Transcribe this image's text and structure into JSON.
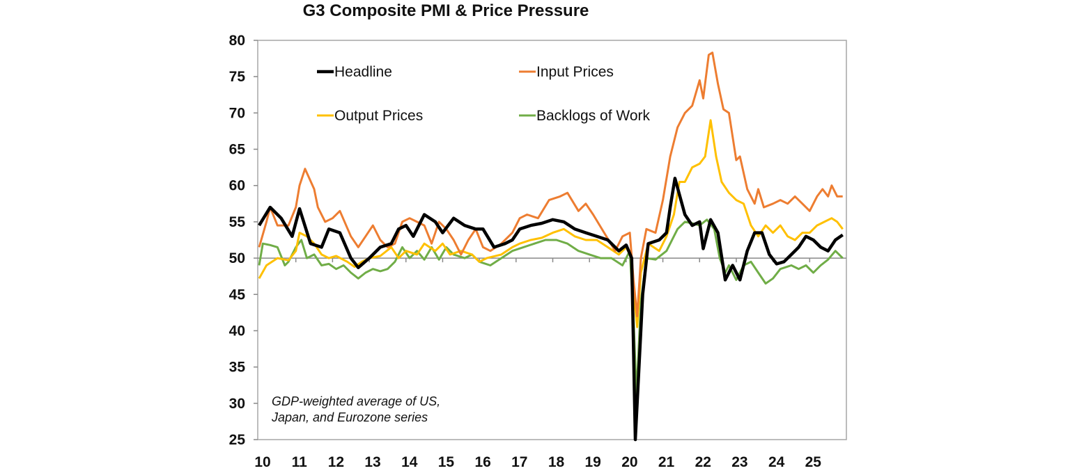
{
  "chart_data": {
    "type": "line",
    "title": "G3 Composite PMI & Price Pressure",
    "xlabel": "",
    "ylabel": "",
    "ylim": [
      25,
      80
    ],
    "xlim": [
      2010,
      2026
    ],
    "yticks": [
      "25",
      "30",
      "35",
      "40",
      "45",
      "50",
      "55",
      "60",
      "65",
      "70",
      "75",
      "80"
    ],
    "xticks": [
      "10",
      "11",
      "12",
      "13",
      "14",
      "15",
      "16",
      "17",
      "18",
      "19",
      "20",
      "21",
      "22",
      "23",
      "24",
      "25"
    ],
    "reference_line": 50,
    "grid": false,
    "legend_placement": "top-left inside",
    "annotation": [
      "GDP-weighted average of US,",
      "Japan, and Eurozone series"
    ],
    "series": [
      {
        "name": "Headline",
        "color": "#000000",
        "x": [
          2010.0,
          2010.3,
          2010.6,
          2010.9,
          2011.1,
          2011.4,
          2011.7,
          2011.9,
          2012.2,
          2012.5,
          2012.7,
          2013.0,
          2013.3,
          2013.6,
          2013.8,
          2014.0,
          2014.2,
          2014.5,
          2014.8,
          2015.0,
          2015.3,
          2015.6,
          2015.9,
          2016.1,
          2016.4,
          2016.7,
          2016.9,
          2017.1,
          2017.4,
          2017.7,
          2018.0,
          2018.3,
          2018.6,
          2018.9,
          2019.2,
          2019.5,
          2019.8,
          2020.0,
          2020.15,
          2020.25,
          2020.45,
          2020.6,
          2020.9,
          2021.1,
          2021.2,
          2021.33,
          2021.6,
          2021.8,
          2022.0,
          2022.1,
          2022.3,
          2022.5,
          2022.7,
          2022.9,
          2023.1,
          2023.3,
          2023.5,
          2023.7,
          2023.9,
          2024.1,
          2024.3,
          2024.5,
          2024.7,
          2024.9,
          2025.1,
          2025.3,
          2025.5,
          2025.7,
          2025.9
        ],
        "y": [
          54.5,
          57,
          55.5,
          53,
          56.8,
          52,
          51.5,
          54,
          53.5,
          50,
          48.7,
          50,
          51.5,
          52,
          54,
          54.5,
          53,
          56,
          55,
          53.5,
          55.5,
          54.5,
          54,
          54,
          51.5,
          52,
          52.5,
          54,
          54.5,
          54.8,
          55.3,
          55,
          54,
          53.5,
          53,
          52.5,
          51,
          51.8,
          50,
          25,
          45,
          52,
          52.5,
          53.5,
          57,
          61,
          56,
          54.5,
          55,
          51.3,
          55.3,
          53.5,
          47,
          49,
          47,
          51,
          53.5,
          53.5,
          50.5,
          49.2,
          49.5,
          50.5,
          51.5,
          53,
          52.5,
          51.5,
          51,
          52.5,
          53.2
        ]
      },
      {
        "name": "Input Prices",
        "color": "#ED7D31",
        "x": [
          2010.0,
          2010.2,
          2010.3,
          2010.5,
          2010.8,
          2011.0,
          2011.1,
          2011.25,
          2011.5,
          2011.6,
          2011.8,
          2012.0,
          2012.2,
          2012.5,
          2012.7,
          2012.9,
          2013.1,
          2013.3,
          2013.5,
          2013.7,
          2013.9,
          2014.1,
          2014.3,
          2014.5,
          2014.7,
          2014.9,
          2015.1,
          2015.3,
          2015.5,
          2015.7,
          2015.9,
          2016.1,
          2016.3,
          2016.6,
          2016.9,
          2017.1,
          2017.3,
          2017.6,
          2017.9,
          2018.2,
          2018.4,
          2018.7,
          2018.9,
          2019.1,
          2019.4,
          2019.7,
          2019.9,
          2020.1,
          2020.2,
          2020.3,
          2020.4,
          2020.55,
          2020.8,
          2021.0,
          2021.2,
          2021.4,
          2021.6,
          2021.8,
          2022.0,
          2022.1,
          2022.25,
          2022.35,
          2022.5,
          2022.65,
          2022.8,
          2023.0,
          2023.1,
          2023.3,
          2023.5,
          2023.6,
          2023.75,
          2024.0,
          2024.2,
          2024.4,
          2024.6,
          2024.8,
          2025.0,
          2025.2,
          2025.35,
          2025.5,
          2025.6,
          2025.75,
          2025.9
        ],
        "y": [
          51.5,
          55,
          57,
          54.5,
          54.5,
          57,
          60,
          62.3,
          59.5,
          57,
          55,
          55.5,
          56.5,
          53,
          51.5,
          53,
          54.5,
          52.5,
          51.5,
          52,
          55,
          55.5,
          55,
          54.5,
          52,
          55,
          54,
          52.5,
          50.5,
          52.5,
          54,
          51.5,
          51,
          52,
          53.5,
          55.5,
          56,
          55.5,
          58,
          58.5,
          59,
          56.5,
          57.5,
          56,
          53.5,
          51,
          53,
          53.5,
          47,
          42,
          50,
          54,
          53.5,
          58,
          64,
          68,
          70,
          71,
          74.5,
          72,
          78,
          78.3,
          74,
          70.5,
          70,
          63.5,
          64,
          59.5,
          57.5,
          59.5,
          57,
          57.5,
          58,
          57.5,
          58.5,
          57.5,
          56.5,
          58.5,
          59.5,
          58.5,
          60,
          58.5,
          58.5
        ]
      },
      {
        "name": "Output Prices",
        "color": "#FFC000",
        "x": [
          2010.0,
          2010.2,
          2010.5,
          2010.8,
          2011.0,
          2011.1,
          2011.3,
          2011.5,
          2011.7,
          2011.9,
          2012.1,
          2012.4,
          2012.6,
          2012.8,
          2013.0,
          2013.3,
          2013.6,
          2013.8,
          2014.0,
          2014.3,
          2014.5,
          2014.8,
          2015.0,
          2015.2,
          2015.5,
          2015.8,
          2016.0,
          2016.2,
          2016.6,
          2016.9,
          2017.1,
          2017.4,
          2017.7,
          2018.0,
          2018.3,
          2018.6,
          2018.9,
          2019.2,
          2019.5,
          2019.8,
          2020.0,
          2020.15,
          2020.25,
          2020.3,
          2020.4,
          2020.6,
          2020.9,
          2021.1,
          2021.3,
          2021.45,
          2021.6,
          2021.8,
          2022.0,
          2022.15,
          2022.3,
          2022.45,
          2022.6,
          2022.8,
          2023.0,
          2023.2,
          2023.4,
          2023.6,
          2023.8,
          2024.0,
          2024.2,
          2024.4,
          2024.6,
          2024.8,
          2025.0,
          2025.2,
          2025.4,
          2025.6,
          2025.75,
          2025.9
        ],
        "y": [
          47.2,
          49,
          50,
          49.7,
          51,
          53.5,
          53,
          52,
          50.5,
          50,
          50.3,
          49.5,
          48.8,
          49.5,
          50,
          50.3,
          51.5,
          50,
          51,
          50.5,
          52,
          51,
          52,
          50.5,
          51,
          50.5,
          49.5,
          50,
          50.5,
          51.5,
          52,
          52.5,
          52.8,
          53.5,
          54,
          53,
          52.5,
          52.5,
          51.5,
          50.5,
          51.5,
          50,
          43,
          40.5,
          48,
          52,
          51,
          53,
          56,
          60.5,
          60.5,
          62.5,
          63,
          64,
          69,
          64,
          60.5,
          59,
          58,
          57.5,
          54.5,
          53,
          54.5,
          53.5,
          54.5,
          53,
          52.5,
          53.5,
          53.5,
          54.5,
          55,
          55.5,
          55,
          54
        ]
      },
      {
        "name": "Backlogs of Work",
        "color": "#70AD47",
        "x": [
          2010.0,
          2010.1,
          2010.3,
          2010.5,
          2010.7,
          2010.8,
          2011.0,
          2011.15,
          2011.3,
          2011.5,
          2011.7,
          2011.9,
          2012.1,
          2012.3,
          2012.5,
          2012.7,
          2012.9,
          2013.1,
          2013.3,
          2013.5,
          2013.7,
          2013.9,
          2014.1,
          2014.3,
          2014.5,
          2014.7,
          2014.9,
          2015.1,
          2015.3,
          2015.6,
          2015.8,
          2016.0,
          2016.3,
          2016.6,
          2016.9,
          2017.2,
          2017.5,
          2017.8,
          2018.1,
          2018.4,
          2018.7,
          2019.0,
          2019.3,
          2019.6,
          2019.9,
          2020.1,
          2020.2,
          2020.28,
          2020.4,
          2020.55,
          2020.8,
          2021.1,
          2021.4,
          2021.6,
          2021.8,
          2022.0,
          2022.2,
          2022.4,
          2022.55,
          2022.7,
          2022.8,
          2023.0,
          2023.2,
          2023.4,
          2023.6,
          2023.8,
          2024.0,
          2024.2,
          2024.5,
          2024.7,
          2024.9,
          2025.1,
          2025.3,
          2025.5,
          2025.7,
          2025.9
        ],
        "y": [
          49,
          52,
          51.8,
          51.5,
          49,
          49.5,
          51.5,
          52.5,
          50,
          50.5,
          49,
          49.2,
          48.5,
          49,
          48,
          47.2,
          48,
          48.5,
          48.2,
          48.5,
          49.5,
          51.5,
          50,
          51,
          49.8,
          51.5,
          49.8,
          51.5,
          50.5,
          50,
          50.5,
          49.5,
          49,
          50,
          51,
          51.5,
          52,
          52.5,
          52.5,
          52,
          51,
          50.5,
          50,
          50,
          49,
          51,
          42,
          31,
          44,
          50,
          49.8,
          51,
          54,
          55,
          54.8,
          54.5,
          55.3,
          54,
          50,
          48,
          49,
          47,
          49,
          49.5,
          48,
          46.5,
          47.2,
          48.5,
          49,
          48.5,
          49,
          48,
          49,
          49.8,
          51,
          50
        ]
      }
    ]
  }
}
